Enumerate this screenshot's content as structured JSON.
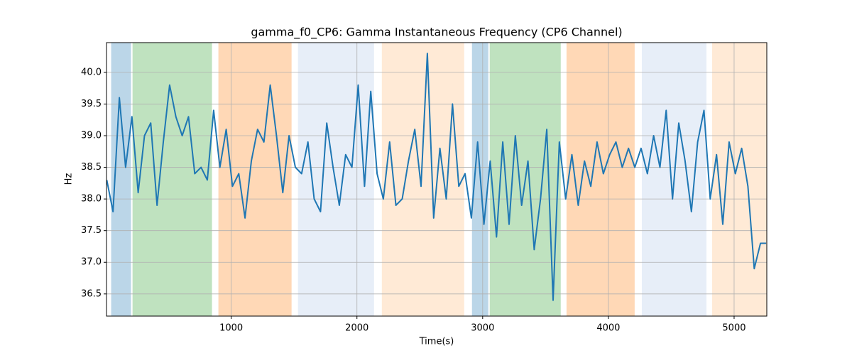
{
  "chart_data": {
    "type": "line",
    "title": "gamma_f0_CP6: Gamma Instantaneous Frequency (CP6 Channel)",
    "xlabel": "Time(s)",
    "ylabel": "Hz",
    "xlim": [
      8,
      5260
    ],
    "ylim": [
      36.15,
      40.47
    ],
    "xticks": [
      1000,
      2000,
      3000,
      4000,
      5000
    ],
    "yticks": [
      36.5,
      {
        "value": 37,
        "label": "37.0"
      },
      37.5,
      {
        "value": 38,
        "label": "38.0"
      },
      38.5,
      {
        "value": 39,
        "label": "39.0"
      },
      39.5,
      {
        "value": 40,
        "label": "40.0"
      }
    ],
    "grid": true,
    "spans": [
      {
        "start": 45,
        "end": 203,
        "color": "#1f77b4"
      },
      {
        "start": 215,
        "end": 847,
        "color": "#2ca02c"
      },
      {
        "start": 898,
        "end": 1480,
        "color": "#ff7f0e"
      },
      {
        "start": 1531,
        "end": 2136,
        "color": "#aec7e8"
      },
      {
        "start": 2198,
        "end": 2853,
        "color": "#ffbb78"
      },
      {
        "start": 2915,
        "end": 3045,
        "color": "#1f77b4"
      },
      {
        "start": 3056,
        "end": 3621,
        "color": "#2ca02c"
      },
      {
        "start": 3667,
        "end": 4209,
        "color": "#ff7f0e"
      },
      {
        "start": 4266,
        "end": 4780,
        "color": "#aec7e8"
      },
      {
        "start": 4825,
        "end": 5266,
        "color": "#ffbb78"
      }
    ],
    "x": [
      10,
      60,
      110,
      160,
      210,
      260,
      310,
      360,
      410,
      460,
      510,
      560,
      610,
      660,
      710,
      760,
      810,
      860,
      910,
      960,
      1010,
      1060,
      1110,
      1160,
      1210,
      1260,
      1310,
      1360,
      1410,
      1460,
      1510,
      1560,
      1610,
      1660,
      1710,
      1760,
      1810,
      1860,
      1910,
      1960,
      2010,
      2060,
      2110,
      2160,
      2210,
      2260,
      2310,
      2360,
      2410,
      2460,
      2510,
      2560,
      2610,
      2660,
      2710,
      2760,
      2810,
      2860,
      2910,
      2960,
      3010,
      3060,
      3110,
      3160,
      3210,
      3260,
      3310,
      3360,
      3410,
      3460,
      3510,
      3560,
      3610,
      3660,
      3710,
      3760,
      3810,
      3860,
      3910,
      3960,
      4010,
      4060,
      4110,
      4160,
      4210,
      4260,
      4310,
      4360,
      4410,
      4460,
      4510,
      4560,
      4610,
      4660,
      4710,
      4760,
      4810,
      4860,
      4910,
      4960,
      5010,
      5060,
      5110,
      5160,
      5210,
      5255
    ],
    "series": [
      {
        "color": "#1f77b4",
        "values": [
          38.3,
          37.8,
          39.6,
          38.5,
          39.3,
          38.1,
          39.0,
          39.2,
          37.9,
          38.9,
          39.8,
          39.3,
          39.0,
          39.3,
          38.4,
          38.5,
          38.3,
          39.4,
          38.5,
          39.1,
          38.2,
          38.4,
          37.7,
          38.6,
          39.1,
          38.9,
          39.8,
          39.0,
          38.1,
          39.0,
          38.5,
          38.4,
          38.9,
          38.0,
          37.8,
          39.2,
          38.5,
          37.9,
          38.7,
          38.5,
          39.8,
          38.2,
          39.7,
          38.4,
          38.0,
          38.9,
          37.9,
          38.0,
          38.6,
          39.1,
          38.2,
          40.3,
          37.7,
          38.8,
          38.0,
          39.5,
          38.2,
          38.4,
          37.7,
          38.9,
          37.6,
          38.6,
          37.4,
          38.9,
          37.6,
          39.0,
          37.9,
          38.6,
          37.2,
          38.0,
          39.1,
          36.4,
          38.9,
          38.0,
          38.7,
          37.9,
          38.6,
          38.2,
          38.9,
          38.4,
          38.7,
          38.9,
          38.5,
          38.8,
          38.5,
          38.8,
          38.4,
          39.0,
          38.5,
          39.4,
          38.0,
          39.2,
          38.6,
          37.8,
          38.9,
          39.4,
          38.0,
          38.7,
          37.6,
          38.9,
          38.4,
          38.8,
          38.2,
          36.9,
          37.3,
          37.3
        ]
      }
    ]
  }
}
